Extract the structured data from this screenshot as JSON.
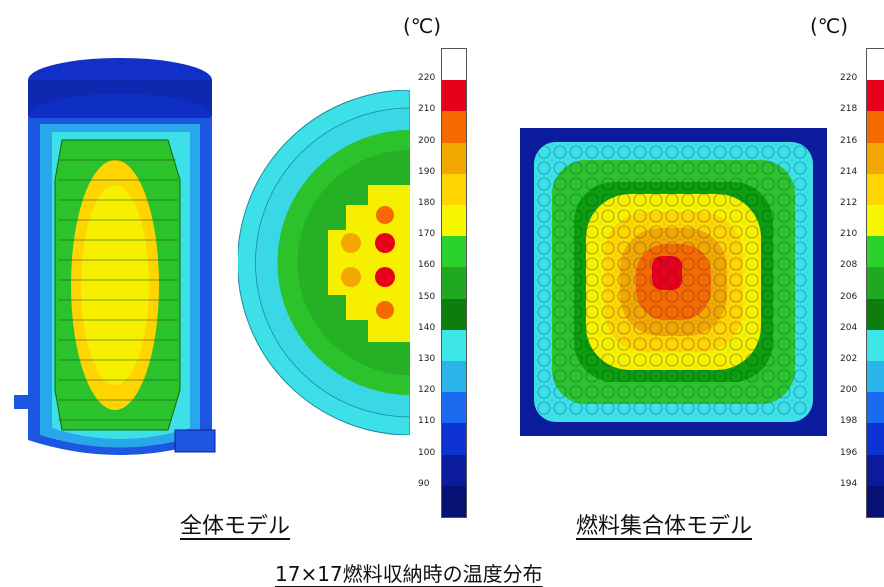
{
  "left_model": {
    "caption": "全体モデル",
    "unit": "(℃)",
    "colorbar": {
      "ticks": [
        "220",
        "210",
        "200",
        "190",
        "180",
        "170",
        "160",
        "150",
        "140",
        "130",
        "120",
        "110",
        "100",
        "90"
      ],
      "colors": [
        "#ffffff",
        "#e8001a",
        "#f46a00",
        "#f2a800",
        "#ffd400",
        "#f7f700",
        "#2bd22b",
        "#21a821",
        "#0d7d0d",
        "#3ce6e6",
        "#2ab4ea",
        "#1a6bf0",
        "#0f32d2",
        "#0a1c9c",
        "#071073"
      ]
    }
  },
  "right_model": {
    "caption": "燃料集合体モデル",
    "unit": "(℃)",
    "colorbar": {
      "ticks": [
        "220",
        "218",
        "216",
        "214",
        "212",
        "210",
        "208",
        "206",
        "204",
        "202",
        "200",
        "198",
        "196",
        "194"
      ],
      "colors": [
        "#ffffff",
        "#e8001a",
        "#f46a00",
        "#f2a800",
        "#ffd400",
        "#f7f700",
        "#2bd22b",
        "#21a821",
        "#0d7d0d",
        "#3ce6e6",
        "#2ab4ea",
        "#1a6bf0",
        "#0f32d2",
        "#0a1c9c",
        "#071073"
      ]
    }
  },
  "figure_title": "17×17燃料収納時の温度分布"
}
